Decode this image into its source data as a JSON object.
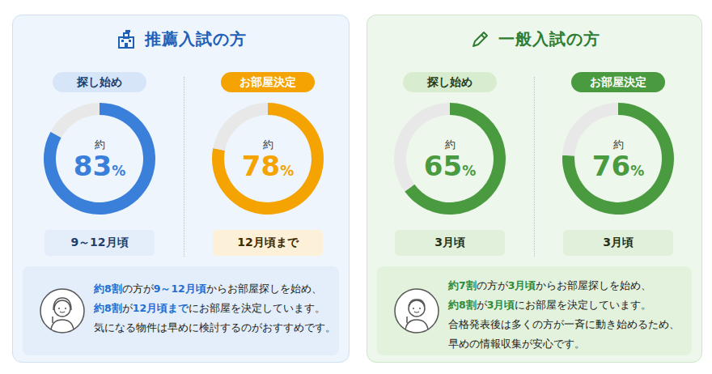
{
  "chart_data": [
    {
      "type": "pie",
      "title": "探し始め",
      "subtitle": "9～12月頃",
      "values": [
        83,
        17
      ],
      "value_labels": [
        "約83%",
        null
      ],
      "colors": [
        "#3a7fd9",
        "#e8e8e8"
      ]
    },
    {
      "type": "pie",
      "title": "お部屋決定",
      "subtitle": "12月頃まで",
      "values": [
        78,
        22
      ],
      "value_labels": [
        "約78%",
        null
      ],
      "colors": [
        "#f5a300",
        "#e8e8e8"
      ]
    },
    {
      "type": "pie",
      "title": "探し始め",
      "subtitle": "3月頃",
      "values": [
        65,
        35
      ],
      "value_labels": [
        "約65%",
        null
      ],
      "colors": [
        "#4a9a3f",
        "#e8e8e8"
      ]
    },
    {
      "type": "pie",
      "title": "お部屋決定",
      "subtitle": "3月頃",
      "values": [
        76,
        24
      ],
      "value_labels": [
        "約76%",
        null
      ],
      "colors": [
        "#4a9a3f",
        "#e8e8e8"
      ]
    }
  ],
  "panels": [
    {
      "title": "推薦入試の方",
      "note": [
        [
          {
            "text": "約8割",
            "highlight": true
          },
          {
            "text": "の方が",
            "highlight": false
          },
          {
            "text": "9～12月頃",
            "highlight": true
          },
          {
            "text": "からお部屋探しを始め、",
            "highlight": false
          }
        ],
        [
          {
            "text": "約8割",
            "highlight": true
          },
          {
            "text": "が",
            "highlight": false
          },
          {
            "text": "12月頃まで",
            "highlight": true
          },
          {
            "text": "にお部屋を決定しています。",
            "highlight": false
          }
        ],
        [
          {
            "text": "気になる物件は早めに検討するのがおすすめです。",
            "highlight": false
          }
        ]
      ]
    },
    {
      "title": "一般入試の方",
      "note": [
        [
          {
            "text": "約7割",
            "highlight": true
          },
          {
            "text": "の方が",
            "highlight": false
          },
          {
            "text": "3月頃",
            "highlight": true
          },
          {
            "text": "からお部屋探しを始め、",
            "highlight": false
          }
        ],
        [
          {
            "text": "約8割",
            "highlight": true
          },
          {
            "text": "が",
            "highlight": false
          },
          {
            "text": "3月頃",
            "highlight": true
          },
          {
            "text": "にお部屋を決定しています。",
            "highlight": false
          }
        ],
        [
          {
            "text": "合格発表後は多くの方が一斉に動き始めるため、",
            "highlight": false
          }
        ],
        [
          {
            "text": "早めの情報収集が安心です。",
            "highlight": false
          }
        ]
      ]
    }
  ]
}
